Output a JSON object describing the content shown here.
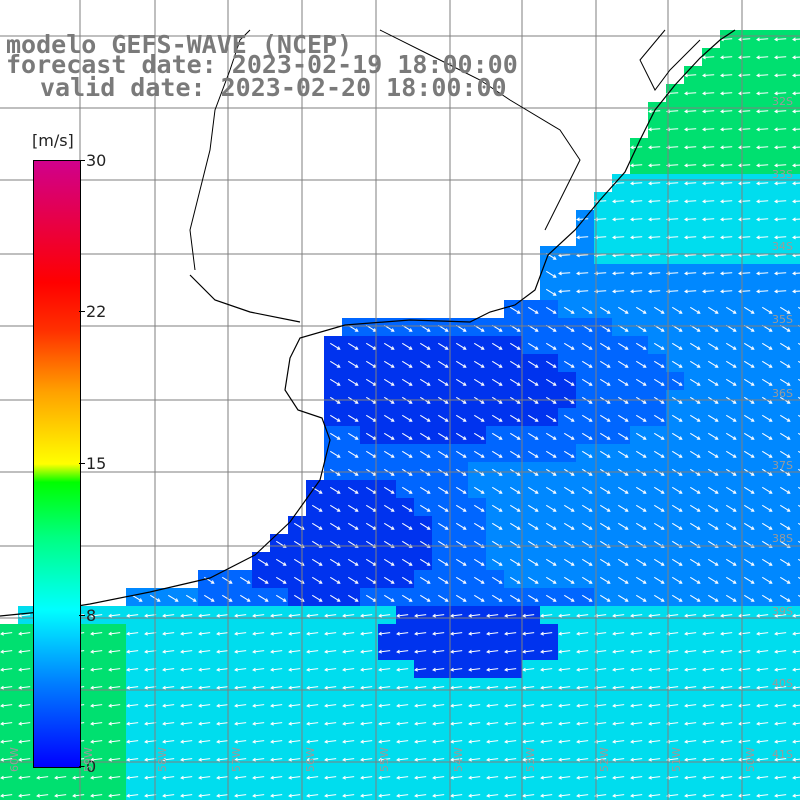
{
  "title": {
    "line1": "modelo GEFS-WAVE (NCEP)",
    "line2": "forecast date: 2023-02-19 18:00:00",
    "line3": "valid date: 2023-02-20 18:00:00"
  },
  "colorbar": {
    "unit": "[m/s]",
    "ticks": [
      "30",
      "22",
      "15",
      "8",
      "0"
    ],
    "stops": [
      "#0000ff",
      "#0080ff",
      "#00ffff",
      "#00ff80",
      "#00ff00",
      "#ffff00",
      "#ffa000",
      "#ff0000",
      "#d0008c"
    ]
  },
  "lat_labels": [
    "32S",
    "33S",
    "34S",
    "35S",
    "36S",
    "37S",
    "38S",
    "39S",
    "40S",
    "41S"
  ],
  "lon_labels": [
    "60W",
    "59W",
    "58W",
    "57W",
    "56W",
    "55W",
    "54W",
    "53W",
    "52W",
    "51W",
    "50W"
  ],
  "colors": {
    "land": "#ffffff",
    "grid": "#7f7f7f",
    "coast": "#000000",
    "arrow": "#ffffff",
    "deep_blue": "#0033ee",
    "mid_blue": "#0088ff",
    "cyan": "#00ddee",
    "green": "#00e070"
  }
}
